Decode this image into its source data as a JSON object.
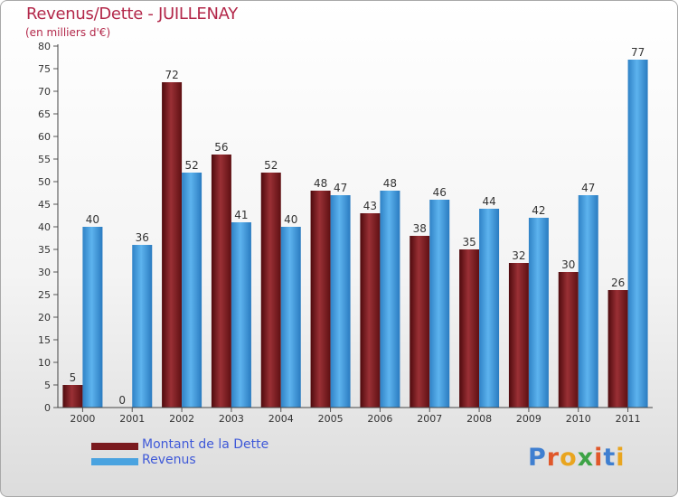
{
  "chart_data": {
    "type": "bar",
    "title": "Revenus/Dette - JUILLENAY",
    "subtitle": "(en milliers d'€)",
    "categories": [
      "2000",
      "2001",
      "2002",
      "2003",
      "2004",
      "2005",
      "2006",
      "2007",
      "2008",
      "2009",
      "2010",
      "2011"
    ],
    "series": [
      {
        "name": "Montant de la Dette",
        "color": "#7a1a1e",
        "values": [
          5,
          0,
          72,
          56,
          52,
          48,
          43,
          38,
          35,
          32,
          30,
          26
        ]
      },
      {
        "name": "Revenus",
        "color": "#4aa3e0",
        "values": [
          40,
          36,
          52,
          41,
          40,
          47,
          48,
          46,
          44,
          42,
          47,
          77
        ]
      }
    ],
    "ylim": [
      0,
      80
    ],
    "ytick_step": 5,
    "grid": false,
    "xlabel": "",
    "ylabel": "",
    "legend_position": "bottom-left"
  },
  "logo": {
    "text": "Proxiti",
    "colors": [
      "#3f7fd0",
      "#e0572a",
      "#e9a51f",
      "#3da346",
      "#e0572a",
      "#3f7fd0",
      "#e9a51f"
    ]
  }
}
